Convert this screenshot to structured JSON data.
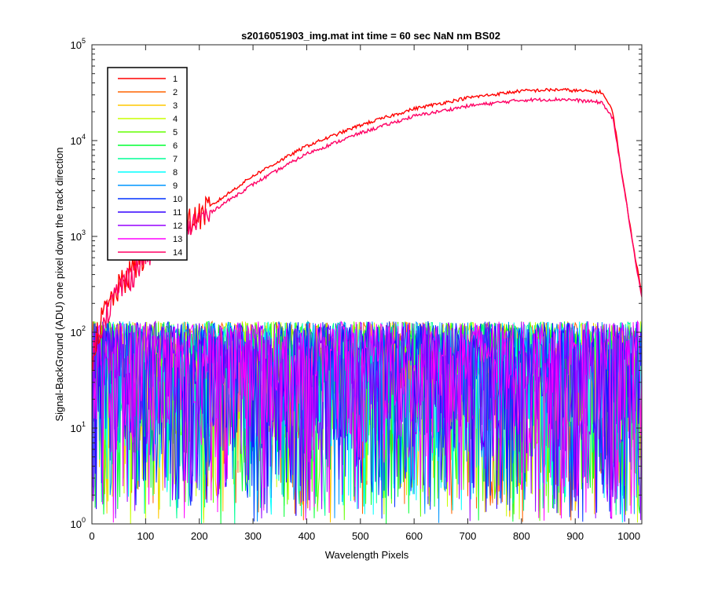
{
  "chart_data": {
    "type": "line",
    "title": "s2016051903_img.mat int time = 60 sec  NaN nm BS02",
    "xlabel": "Wavelength Pixels",
    "ylabel": "Signal-BackGround (ADU) one pixel down the track direction",
    "xlim": [
      0,
      1024
    ],
    "ylim": [
      1,
      100000
    ],
    "yscale": "log",
    "grid": false,
    "legend_location": "top-left",
    "x_ticks": [
      0,
      100,
      200,
      300,
      400,
      500,
      600,
      700,
      800,
      900,
      1000
    ],
    "y_ticks": [
      {
        "value": 1,
        "base": "10",
        "exp": "0"
      },
      {
        "value": 10,
        "base": "10",
        "exp": "1"
      },
      {
        "value": 100,
        "base": "10",
        "exp": "2"
      },
      {
        "value": 1000,
        "base": "10",
        "exp": "3"
      },
      {
        "value": 10000,
        "base": "10",
        "exp": "4"
      },
      {
        "value": 100000,
        "base": "10",
        "exp": "5"
      }
    ],
    "series": [
      {
        "name": "1",
        "color": "#ff0000",
        "kind": "signal",
        "points": [
          [
            0,
            60
          ],
          [
            20,
            150
          ],
          [
            50,
            300
          ],
          [
            100,
            700
          ],
          [
            150,
            1100
          ],
          [
            200,
            1700
          ],
          [
            300,
            4300
          ],
          [
            400,
            8800
          ],
          [
            500,
            14500
          ],
          [
            600,
            21500
          ],
          [
            700,
            28000
          ],
          [
            800,
            33000
          ],
          [
            870,
            34000
          ],
          [
            950,
            32000
          ],
          [
            970,
            20000
          ],
          [
            990,
            3500
          ],
          [
            1010,
            700
          ],
          [
            1024,
            250
          ]
        ]
      },
      {
        "name": "2",
        "color": "#ff6400",
        "kind": "noise"
      },
      {
        "name": "3",
        "color": "#ffc800",
        "kind": "noise"
      },
      {
        "name": "4",
        "color": "#c8ff00",
        "kind": "noise"
      },
      {
        "name": "5",
        "color": "#64ff00",
        "kind": "noise"
      },
      {
        "name": "6",
        "color": "#00ff32",
        "kind": "noise"
      },
      {
        "name": "7",
        "color": "#00ff96",
        "kind": "noise"
      },
      {
        "name": "8",
        "color": "#00ffff",
        "kind": "noise"
      },
      {
        "name": "9",
        "color": "#0096ff",
        "kind": "noise"
      },
      {
        "name": "10",
        "color": "#0032ff",
        "kind": "noise"
      },
      {
        "name": "11",
        "color": "#3200ff",
        "kind": "noise"
      },
      {
        "name": "12",
        "color": "#9600ff",
        "kind": "noise"
      },
      {
        "name": "13",
        "color": "#ff00ff",
        "kind": "noise"
      },
      {
        "name": "14",
        "color": "#ff0064",
        "kind": "signal",
        "points": [
          [
            0,
            55
          ],
          [
            20,
            140
          ],
          [
            50,
            280
          ],
          [
            100,
            650
          ],
          [
            150,
            1000
          ],
          [
            200,
            1500
          ],
          [
            300,
            3500
          ],
          [
            400,
            7300
          ],
          [
            500,
            12000
          ],
          [
            600,
            18000
          ],
          [
            700,
            23000
          ],
          [
            800,
            26500
          ],
          [
            880,
            27000
          ],
          [
            950,
            25000
          ],
          [
            970,
            17000
          ],
          [
            990,
            3500
          ],
          [
            1010,
            650
          ],
          [
            1024,
            230
          ]
        ]
      }
    ],
    "noise_level": {
      "min": 1,
      "max": 130,
      "typical": 40
    }
  }
}
